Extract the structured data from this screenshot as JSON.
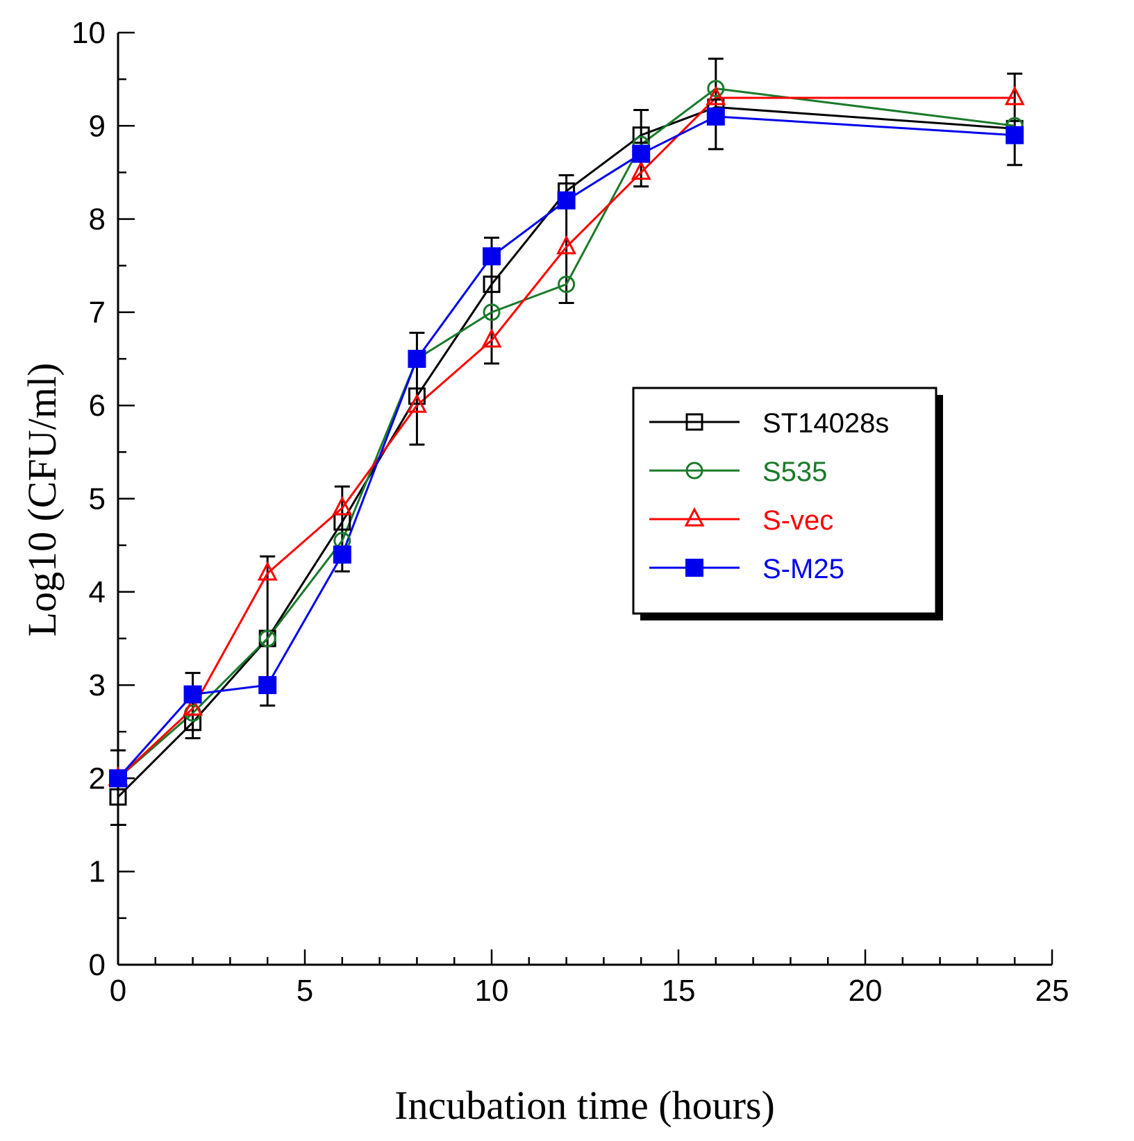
{
  "chart_data": {
    "type": "line",
    "title": "",
    "xlabel": "Incubation time (hours)",
    "ylabel": "Log10 (CFU/ml)",
    "xlim": [
      0,
      25
    ],
    "ylim": [
      0,
      10
    ],
    "xticks": [
      0,
      5,
      10,
      15,
      20,
      25
    ],
    "yticks": [
      0,
      1,
      2,
      3,
      4,
      5,
      6,
      7,
      8,
      9,
      10
    ],
    "grid": false,
    "legend_position": "center-right",
    "x": [
      0,
      2,
      4,
      6,
      8,
      10,
      12,
      14,
      16,
      24
    ],
    "series": [
      {
        "name": "ST14028s",
        "color": "#000000",
        "marker": "open-square",
        "values": [
          1.8,
          2.6,
          3.5,
          4.75,
          6.1,
          7.3,
          8.3,
          8.9,
          9.2,
          8.97
        ]
      },
      {
        "name": "S535",
        "color": "#1a7a2a",
        "marker": "open-circle",
        "values": [
          2.0,
          2.7,
          3.5,
          4.55,
          6.5,
          7.0,
          7.3,
          8.8,
          9.4,
          9.0
        ]
      },
      {
        "name": "S-vec",
        "color": "#ff0000",
        "marker": "open-triangle",
        "values": [
          2.0,
          2.75,
          4.2,
          4.9,
          6.0,
          6.7,
          7.7,
          8.5,
          9.3,
          9.3
        ]
      },
      {
        "name": "S-M25",
        "color": "#0000ee",
        "marker": "filled-square",
        "values": [
          2.0,
          2.9,
          3.0,
          4.4,
          6.5,
          7.6,
          8.2,
          8.7,
          9.1,
          8.9
        ]
      }
    ],
    "error_bars": [
      [
        1.5,
        2.3
      ],
      [
        2.43,
        3.13
      ],
      [
        2.78,
        4.38
      ],
      [
        4.22,
        5.13
      ],
      [
        5.58,
        6.78
      ],
      [
        6.45,
        7.8
      ],
      [
        7.1,
        8.47
      ],
      [
        8.35,
        9.17
      ],
      [
        8.75,
        9.72
      ],
      [
        8.58,
        9.56
      ]
    ]
  }
}
